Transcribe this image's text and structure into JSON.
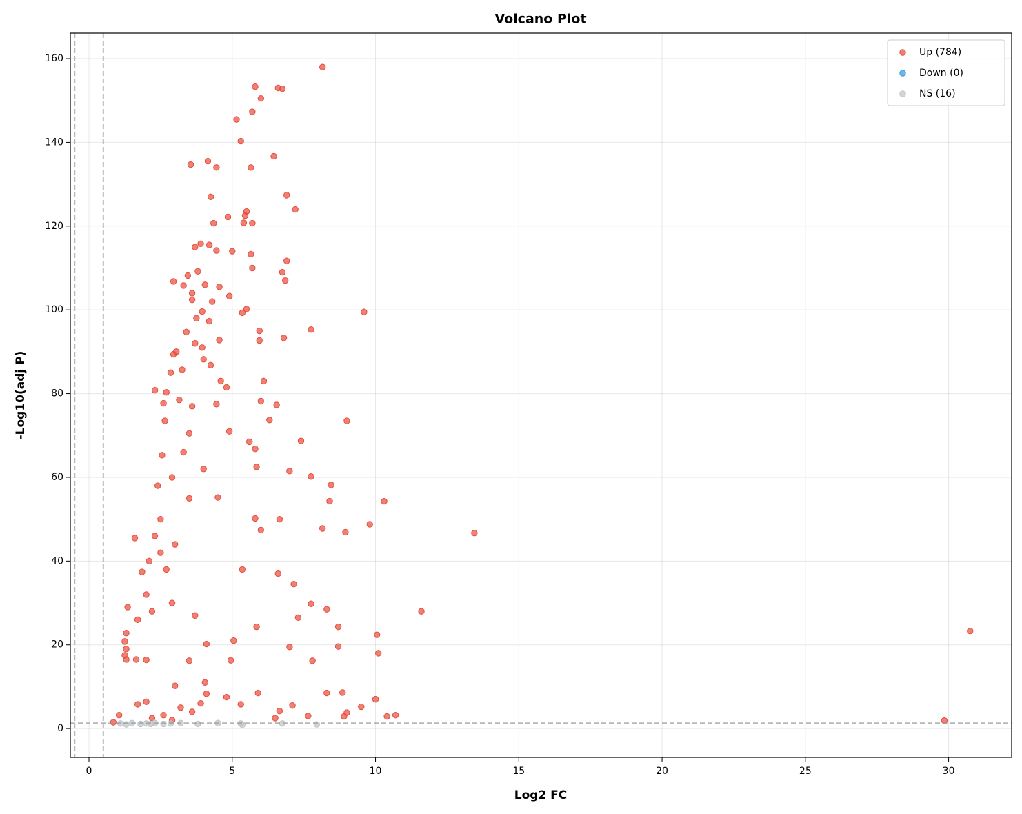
{
  "chart_data": {
    "type": "scatter",
    "title": "Volcano Plot",
    "x_label": "Log2 FC",
    "y_label": "-Log10(adj P)",
    "xlim": [
      -0.65,
      32.2
    ],
    "ylim": [
      -6.9,
      166.1
    ],
    "xticks": [
      0,
      5,
      10,
      15,
      20,
      25,
      30
    ],
    "yticks": [
      0,
      20,
      40,
      60,
      80,
      100,
      120,
      140,
      160
    ],
    "grid": true,
    "legend": "upper right",
    "vlines": [
      -0.5,
      0.5
    ],
    "hline": 1.3,
    "series": [
      {
        "name": "Up (784)",
        "color": "#e74c3c",
        "x": [
          8.15,
          5.8,
          6.6,
          6.75,
          6.0,
          5.7,
          5.15,
          5.3,
          6.45,
          4.15,
          3.55,
          4.45,
          5.65,
          6.9,
          4.25,
          7.2,
          5.5,
          4.85,
          5.45,
          5.4,
          5.7,
          4.35,
          3.7,
          3.9,
          4.2,
          4.45,
          5.0,
          5.65,
          6.9,
          5.7,
          3.8,
          6.75,
          3.45,
          2.95,
          6.85,
          4.05,
          4.55,
          3.3,
          3.6,
          4.9,
          4.3,
          3.6,
          5.5,
          9.6,
          5.35,
          3.95,
          3.75,
          4.2,
          7.75,
          5.95,
          3.4,
          6.8,
          4.55,
          5.95,
          3.7,
          3.95,
          3.05,
          2.95,
          4.0,
          4.25,
          3.25,
          2.85,
          4.6,
          6.1,
          4.8,
          2.3,
          2.7,
          6.0,
          6.55,
          3.15,
          3.6,
          2.6,
          4.45,
          9.0,
          6.3,
          4.9,
          7.4,
          5.6,
          2.65,
          3.5,
          5.8,
          3.3,
          2.55,
          7.0,
          5.85,
          7.75,
          4.0,
          2.9,
          8.45,
          10.3,
          8.4,
          2.4,
          3.5,
          4.5,
          6.65,
          5.8,
          9.8,
          8.15,
          6.0,
          13.45,
          8.95,
          2.5,
          2.3,
          3.0,
          2.1,
          2.5,
          2.7,
          1.85,
          6.6,
          5.35,
          1.6,
          7.15,
          8.3,
          11.6,
          7.3,
          1.35,
          1.7,
          2.0,
          2.2,
          2.9,
          3.7,
          7.75,
          5.85,
          8.7,
          10.05,
          30.75,
          1.3,
          1.25,
          1.3,
          1.25,
          1.3,
          1.65,
          2.0,
          7.0,
          8.7,
          10.1,
          7.8,
          3.5,
          4.95,
          5.05,
          4.1,
          4.05,
          3.0,
          1.05,
          0.85,
          1.7,
          2.0,
          5.9,
          8.85,
          8.3,
          10.0,
          9.5,
          10.7,
          10.4,
          7.65,
          6.65,
          7.1,
          4.8,
          4.1,
          3.2,
          2.6,
          29.85,
          9.0,
          8.9,
          6.5,
          5.3,
          3.6,
          3.9,
          2.9,
          2.2
        ],
        "values": [
          158,
          153.3,
          153,
          152.8,
          150.5,
          147.3,
          145.5,
          140.3,
          136.7,
          135.5,
          134.7,
          134,
          134,
          127.4,
          127,
          124,
          123.5,
          122.2,
          122.5,
          120.8,
          120.7,
          120.7,
          115,
          115.8,
          115.5,
          114.2,
          114,
          113.3,
          111.7,
          110,
          109.2,
          109,
          108.2,
          106.8,
          107,
          106,
          105.5,
          105.8,
          104,
          103.3,
          102,
          102.4,
          100.2,
          99.5,
          99.3,
          99.6,
          98,
          97.3,
          95.3,
          95,
          94.7,
          93.3,
          92.8,
          92.7,
          92,
          91,
          90,
          89.4,
          88.2,
          86.8,
          85.7,
          85,
          83,
          83,
          81.5,
          80.8,
          80.3,
          78.2,
          77.3,
          78.5,
          77,
          77.7,
          77.5,
          73.5,
          73.7,
          71,
          68.7,
          68.5,
          73.5,
          70.5,
          66.8,
          66,
          65.3,
          61.5,
          62.5,
          60.2,
          62,
          60,
          58.2,
          54.3,
          54.3,
          58,
          55,
          55.2,
          50,
          50.2,
          48.8,
          47.8,
          47.4,
          46.7,
          46.9,
          50,
          46,
          44,
          40,
          42,
          38,
          37.4,
          37,
          38,
          45.5,
          34.5,
          28.5,
          28,
          26.5,
          29,
          26,
          32,
          28,
          30,
          27,
          29.8,
          24.3,
          24.3,
          22.4,
          23.3,
          22.8,
          20.8,
          19,
          17.5,
          16.5,
          16.5,
          16.4,
          19.5,
          19.6,
          18,
          16.2,
          16.2,
          16.3,
          21,
          20.2,
          11,
          10.2,
          3.2,
          1.5,
          5.8,
          6.4,
          8.5,
          8.6,
          8.5,
          7,
          5.2,
          3.2,
          2.9,
          3.0,
          4.2,
          5.5,
          7.5,
          8.3,
          5,
          3.2,
          1.9,
          3.8,
          2.9,
          2.5,
          5.8,
          4,
          6,
          2,
          2.5
        ]
      },
      {
        "name": "Down (0)",
        "color": "#3498db",
        "x": [],
        "values": []
      },
      {
        "name": "NS (16)",
        "color": "#bdc3c7",
        "x": [
          1.1,
          1.5,
          1.8,
          2.0,
          2.3,
          2.6,
          2.85,
          3.2,
          3.8,
          5.3,
          5.35,
          6.75,
          7.95,
          1.3,
          2.15,
          4.5
        ],
        "values": [
          1.2,
          1.3,
          1.1,
          1.2,
          1.3,
          1.1,
          1.2,
          1.3,
          1.1,
          1.2,
          0.9,
          1.2,
          1.0,
          1.0,
          1.1,
          1.3
        ]
      }
    ]
  }
}
